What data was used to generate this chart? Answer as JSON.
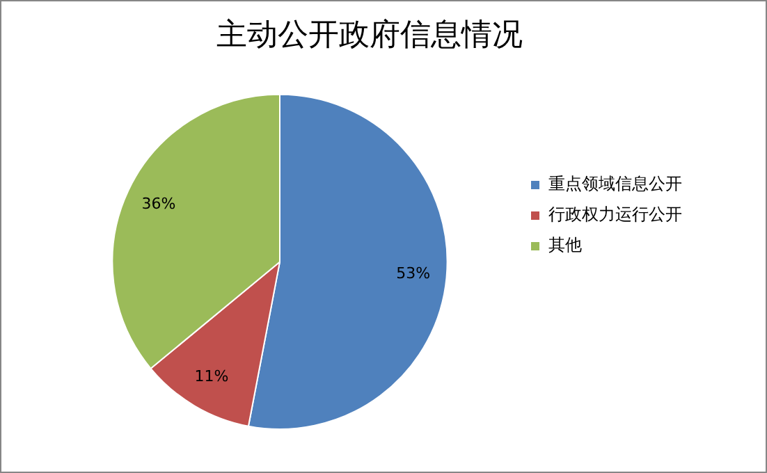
{
  "chart_data": {
    "type": "pie",
    "title": "主动公开政府信息情况",
    "categories": [
      "重点领域信息公开",
      "行政权力运行公开",
      "其他"
    ],
    "values": [
      53,
      11,
      36
    ],
    "colors": [
      "#4f81bd",
      "#c0504d",
      "#9bbb59"
    ],
    "value_labels": [
      "53%",
      "11%",
      "36%"
    ],
    "legend": "right"
  }
}
